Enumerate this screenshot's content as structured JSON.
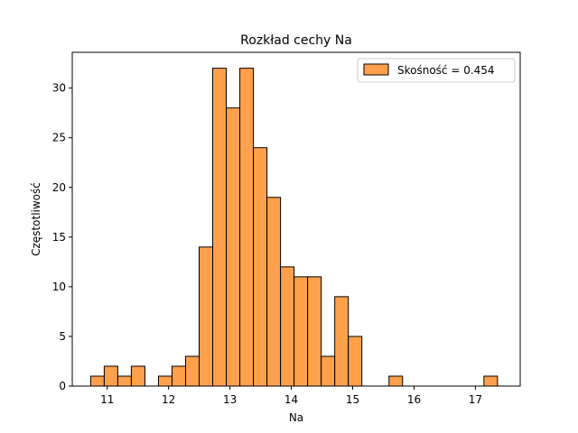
{
  "chart_data": {
    "type": "bar",
    "title": "Rozkład cechy Na",
    "xlabel": "Na",
    "ylabel": "Częstotliwość",
    "xlim": [
      10.43,
      17.73
    ],
    "ylim": [
      0,
      33.6
    ],
    "xticks": [
      11,
      12,
      13,
      14,
      15,
      16,
      17
    ],
    "yticks": [
      0,
      5,
      10,
      15,
      20,
      25,
      30
    ],
    "bin_width": 0.221,
    "bins": [
      {
        "x0": 10.73,
        "count": 1
      },
      {
        "x0": 10.951,
        "count": 2
      },
      {
        "x0": 11.172,
        "count": 1
      },
      {
        "x0": 11.393,
        "count": 2
      },
      {
        "x0": 11.614,
        "count": 0
      },
      {
        "x0": 11.835,
        "count": 1
      },
      {
        "x0": 12.056,
        "count": 2
      },
      {
        "x0": 12.277,
        "count": 3
      },
      {
        "x0": 12.498,
        "count": 14
      },
      {
        "x0": 12.719,
        "count": 32
      },
      {
        "x0": 12.94,
        "count": 28
      },
      {
        "x0": 13.161,
        "count": 32
      },
      {
        "x0": 13.382,
        "count": 24
      },
      {
        "x0": 13.603,
        "count": 19
      },
      {
        "x0": 13.824,
        "count": 12
      },
      {
        "x0": 14.045,
        "count": 11
      },
      {
        "x0": 14.266,
        "count": 11
      },
      {
        "x0": 14.487,
        "count": 3
      },
      {
        "x0": 14.708,
        "count": 9
      },
      {
        "x0": 14.929,
        "count": 5
      },
      {
        "x0": 15.15,
        "count": 0
      },
      {
        "x0": 15.371,
        "count": 0
      },
      {
        "x0": 15.592,
        "count": 1
      },
      {
        "x0": 15.813,
        "count": 0
      },
      {
        "x0": 16.034,
        "count": 0
      },
      {
        "x0": 16.255,
        "count": 0
      },
      {
        "x0": 16.476,
        "count": 0
      },
      {
        "x0": 16.697,
        "count": 0
      },
      {
        "x0": 16.918,
        "count": 0
      },
      {
        "x0": 17.139,
        "count": 1
      }
    ],
    "legend": {
      "label": "Skośność = 0.454",
      "placement": "upper right"
    },
    "colors": {
      "bar_fill": "#ffa04d",
      "bar_edge": "#000000"
    },
    "grid": false
  }
}
